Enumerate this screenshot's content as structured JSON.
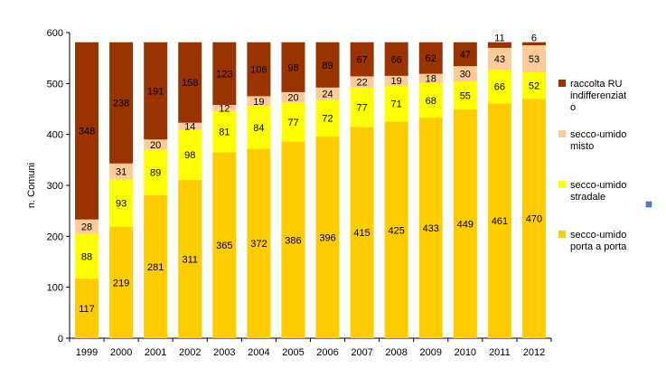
{
  "chart_data": {
    "type": "bar",
    "stacked": true,
    "ylabel": "n. Comuni",
    "xlabel": "",
    "ylim": [
      0,
      600
    ],
    "yticks": [
      0,
      100,
      200,
      300,
      400,
      500,
      600
    ],
    "grid": false,
    "legend_position": "right",
    "categories": [
      "1999",
      "2000",
      "2001",
      "2002",
      "2003",
      "2004",
      "2005",
      "2006",
      "2007",
      "2008",
      "2009",
      "2010",
      "2011",
      "2012"
    ],
    "series": [
      {
        "name": "secco-umido porta a porta",
        "color": "#FFCC00",
        "values": [
          117,
          219,
          281,
          311,
          365,
          372,
          386,
          396,
          415,
          425,
          433,
          449,
          461,
          470
        ]
      },
      {
        "name": "secco-umido stradale",
        "color": "#FFFF00",
        "values": [
          88,
          93,
          89,
          98,
          81,
          84,
          77,
          72,
          77,
          71,
          68,
          55,
          66,
          52
        ]
      },
      {
        "name": "secco-umido misto",
        "color": "#FFCC99",
        "values": [
          28,
          31,
          20,
          14,
          12,
          19,
          20,
          24,
          22,
          19,
          18,
          30,
          43,
          53
        ]
      },
      {
        "name": "raccolta RU indifferenziato",
        "color": "#993300",
        "values": [
          348,
          238,
          191,
          158,
          123,
          106,
          98,
          89,
          67,
          66,
          62,
          47,
          11,
          6
        ]
      }
    ],
    "legend_lines": [
      [
        "raccolta RU",
        "indifferenziat",
        "o"
      ],
      [
        "secco-umido",
        "misto"
      ],
      [
        "secco-umido",
        "stradale"
      ],
      [
        "secco-umido",
        "porta a porta"
      ]
    ]
  }
}
